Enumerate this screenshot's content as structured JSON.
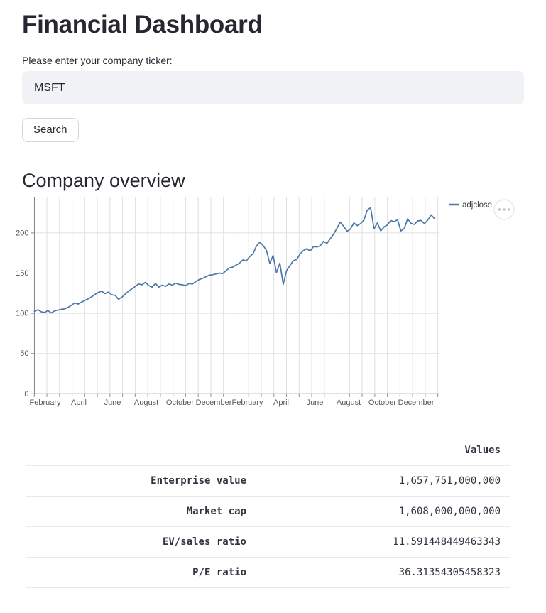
{
  "page": {
    "title": "Financial Dashboard"
  },
  "ticker_form": {
    "label": "Please enter your company ticker:",
    "value": "MSFT",
    "search_button_label": "Search"
  },
  "section": {
    "heading": "Company overview"
  },
  "chart_data": {
    "type": "line",
    "title": "",
    "xlabel": "",
    "ylabel": "",
    "x_start": "2019-01",
    "x_end": "2021-01",
    "x_tick_labels": [
      "February",
      "April",
      "June",
      "August",
      "October",
      "December",
      "February",
      "April",
      "June",
      "August",
      "October",
      "December"
    ],
    "y_ticks": [
      0,
      50,
      100,
      150,
      200
    ],
    "ylim": [
      0,
      245
    ],
    "grid": true,
    "legend_position": "top-right",
    "series": [
      {
        "name": "adjclose",
        "color": "#4c78a8",
        "values": [
          102.5,
          104.5,
          102,
          101,
          103.5,
          100.5,
          103,
          104,
          105,
          105.5,
          107.5,
          110,
          113,
          111.5,
          114,
          116,
          118,
          120.5,
          123.5,
          126,
          127.5,
          124.5,
          126.5,
          123,
          122.5,
          117.5,
          120,
          124,
          127.5,
          130.5,
          133.5,
          136.5,
          135.5,
          138.5,
          134.5,
          132.5,
          137,
          132.5,
          135,
          133.5,
          136.5,
          135,
          137.5,
          136,
          135.5,
          134.5,
          137,
          136.5,
          139.5,
          142,
          143.5,
          145.5,
          147.5,
          148,
          149,
          150,
          149.5,
          153,
          156.5,
          157.5,
          160,
          162.5,
          166.5,
          165,
          170.5,
          174,
          183.5,
          188.5,
          184.5,
          178.5,
          162,
          172,
          150.5,
          162.5,
          136,
          153,
          159.5,
          165.5,
          167,
          174,
          178,
          180.5,
          177.5,
          183,
          182.5,
          184,
          189.5,
          187,
          193,
          198.5,
          206,
          213.5,
          208,
          202,
          205,
          212.5,
          209,
          211.5,
          216,
          228.5,
          231.5,
          205,
          212.5,
          202.5,
          207.5,
          210,
          215.5,
          214,
          216.5,
          202.5,
          205.5,
          217.5,
          212,
          210.5,
          215,
          215.5,
          211.5,
          216,
          222.5,
          217.5
        ]
      }
    ]
  },
  "chart_menu": {
    "icon": "ellipsis"
  },
  "table": {
    "value_header": "Values",
    "rows": [
      {
        "label": "Enterprise value",
        "value": "1,657,751,000,000"
      },
      {
        "label": "Market cap",
        "value": "1,608,000,000,000"
      },
      {
        "label": "EV/sales ratio",
        "value": "11.591448449463343"
      },
      {
        "label": "P/E ratio",
        "value": "36.31354305458323"
      }
    ]
  },
  "colors": {
    "line": "#4c78a8",
    "grid": "#e0e0e0",
    "axis": "#888888",
    "axis_label": "#565656",
    "input_bg": "#f0f2f6",
    "table_border": "#e6e9ef",
    "text": "#262730"
  }
}
